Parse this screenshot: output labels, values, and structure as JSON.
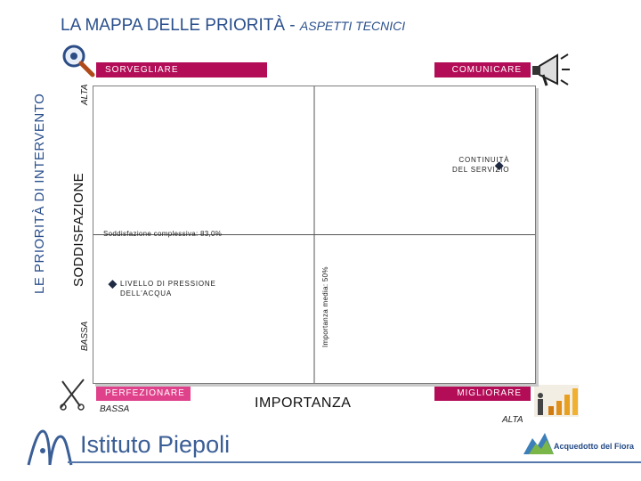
{
  "title": {
    "main": "LA MAPPA DELLE PRIORITÀ -",
    "sub": "ASPETTI TECNICI"
  },
  "side_title": "LE PRIORITÀ DI INTERVENTO",
  "quadrants": {
    "top_left": "SORVEGLIARE",
    "top_right": "COMUNICARE",
    "bottom_left": "PERFEZIONARE",
    "bottom_right": "MIGLIORARE"
  },
  "brand": {
    "name": "Istituto Piepoli",
    "partner": "Acquedotto del Fiora"
  },
  "colors": {
    "title": "#2a4f8c",
    "quadrant_top": "#b30d57",
    "quadrant_bottom": "#e0418b",
    "marker": "#1f2a44",
    "reference_line": "#555555"
  },
  "icons": [
    "magnifier-icon",
    "megaphone-icon",
    "tools-icon",
    "growth-chart-icon"
  ],
  "chart_data": {
    "type": "scatter",
    "xlabel": "IMPORTANZA",
    "ylabel": "SODDISFAZIONE",
    "x_axis_ends": {
      "low": "BASSA",
      "high": "ALTA"
    },
    "y_axis_ends": {
      "low": "BASSA",
      "high": "ALTA"
    },
    "reference_lines": {
      "horizontal_label": "Soddisfazione complessiva: 83,0%",
      "vertical_label": "Importanza media: 50%"
    },
    "points": [
      {
        "label": "CONTINUITÀ\nDEL SERVIZIO",
        "x": 0.94,
        "y": 0.75
      },
      {
        "label": "LIVELLO DI PRESSIONE\nDELL'ACQUA",
        "x": 0.02,
        "y": 0.32
      }
    ],
    "quadrant_split": {
      "x": 0.5,
      "y": 0.5
    },
    "grid": false,
    "legend": "none"
  }
}
